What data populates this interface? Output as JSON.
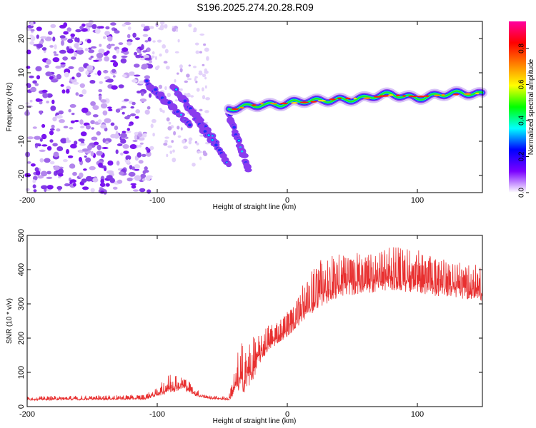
{
  "figure": {
    "title": "S196.2025.274.20.28.R09"
  },
  "chart_data": [
    {
      "type": "heatmap",
      "name": "spectrogram",
      "xlabel": "Height of straight line (km)",
      "ylabel": "Frequency (Hz)",
      "xlim": [
        -200,
        150
      ],
      "ylim": [
        -25,
        25
      ],
      "x_ticks": [
        "-200",
        "-100",
        "0",
        "100"
      ],
      "x_tick_values": [
        -200,
        -100,
        0,
        100
      ],
      "y_ticks": [
        "20",
        "10",
        "0",
        "-10",
        "-20"
      ],
      "y_tick_values": [
        20,
        10,
        0,
        -10,
        -20
      ],
      "colorbar": {
        "label": "Normalized spectral amplitude",
        "range": [
          0,
          0.95
        ],
        "ticks": [
          "0.0",
          "0.2",
          "0.4",
          "0.6",
          "0.8"
        ],
        "tick_values": [
          0.0,
          0.2,
          0.4,
          0.6,
          0.8
        ],
        "colors": [
          "#ffffff",
          "#7a00ff",
          "#0000ff",
          "#00ffff",
          "#00ff00",
          "#ffff00",
          "#ff8000",
          "#ff0000",
          "#ff00a0"
        ]
      },
      "features": {
        "noise_region_x": [
          -200,
          -105
        ],
        "scattered_region_x": [
          -105,
          -60
        ],
        "descending_streaks": [
          {
            "x": [
              -108,
              -75
            ],
            "y": [
              7,
              -5
            ]
          },
          {
            "x": [
              -88,
              -55
            ],
            "y": [
              6,
              -10
            ]
          },
          {
            "x": [
              -80,
              -45
            ],
            "y": [
              2,
              -17
            ]
          },
          {
            "x": [
              -45,
              -30
            ],
            "y": [
              -2,
              -18
            ]
          }
        ],
        "steady_band": {
          "x": [
            -45,
            -20,
            -5,
            20,
            40,
            60,
            80,
            100,
            120,
            150
          ],
          "y": [
            -1,
            1,
            1,
            1.5,
            2.5,
            2.5,
            3.5,
            3,
            3.5,
            4
          ]
        }
      }
    },
    {
      "type": "line",
      "name": "snr",
      "xlabel": "Height of straight line (km)",
      "ylabel": "SNR (10 * v/v)",
      "xlim": [
        -200,
        150
      ],
      "ylim": [
        0,
        500
      ],
      "x_ticks": [
        "-200",
        "-100",
        "0",
        "100"
      ],
      "x_tick_values": [
        -200,
        -100,
        0,
        100
      ],
      "y_ticks": [
        "500",
        "400",
        "300",
        "200",
        "100",
        "0"
      ],
      "y_tick_values": [
        500,
        400,
        300,
        200,
        100,
        0
      ],
      "color": "#e83030",
      "envelope": {
        "x": [
          -200,
          -110,
          -100,
          -90,
          -80,
          -70,
          -60,
          -45,
          -38,
          -32,
          -28,
          -22,
          -15,
          -5,
          5,
          15,
          25,
          40,
          60,
          80,
          100,
          120,
          150
        ],
        "baseline": [
          18,
          20,
          30,
          40,
          50,
          30,
          22,
          18,
          40,
          40,
          60,
          120,
          160,
          190,
          220,
          260,
          290,
          320,
          330,
          340,
          330,
          320,
          310
        ],
        "spread": [
          12,
          15,
          25,
          60,
          45,
          20,
          12,
          12,
          120,
          180,
          140,
          90,
          80,
          70,
          80,
          110,
          130,
          120,
          110,
          120,
          120,
          110,
          90
        ]
      }
    }
  ]
}
